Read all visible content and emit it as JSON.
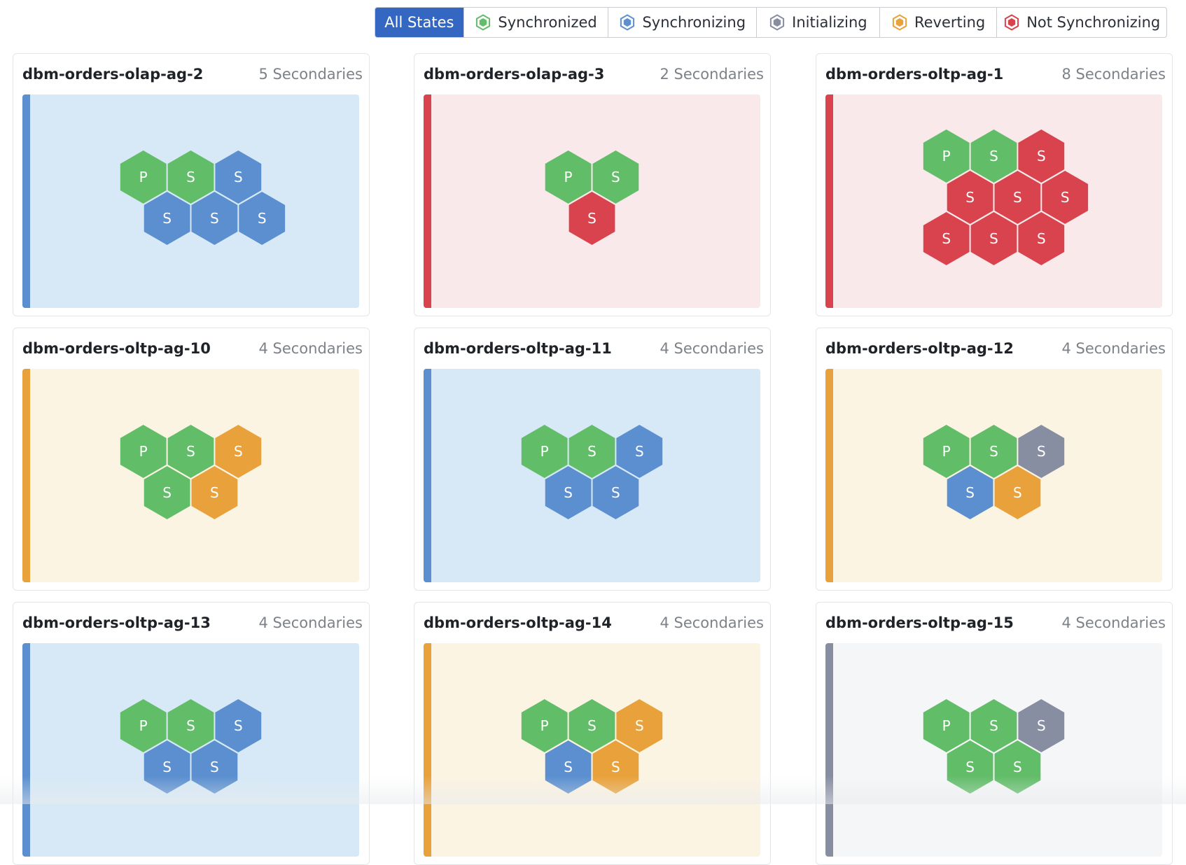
{
  "colors": {
    "synchronized": "#62bd69",
    "synchronizing": "#5b8fcf",
    "initializing": "#878ea1",
    "reverting": "#e9a23b",
    "not_synchronizing": "#d9434e",
    "active_filter_bg": "#3367c2"
  },
  "panel_backgrounds": {
    "synchronizing": "#d7e9f6",
    "not_synchronizing": "#f9e9ea",
    "reverting": "#fcf4e3",
    "initializing": "#f5f6f7"
  },
  "filters": [
    {
      "label": "All States",
      "state": "all",
      "active": true,
      "icon": ""
    },
    {
      "label": "Synchronized",
      "state": "synchronized",
      "active": false,
      "icon": "hexagon-icon"
    },
    {
      "label": "Synchronizing",
      "state": "synchronizing",
      "active": false,
      "icon": "hexagon-icon"
    },
    {
      "label": "Initializing",
      "state": "initializing",
      "active": false,
      "icon": "hexagon-icon"
    },
    {
      "label": "Reverting",
      "state": "reverting",
      "active": false,
      "icon": "hexagon-icon"
    },
    {
      "label": "Not Synchronizing",
      "state": "not_synchronizing",
      "active": false,
      "icon": "hexagon-icon"
    }
  ],
  "groups": [
    {
      "name": "dbm-orders-olap-ag-2",
      "secondaries_label": "5 Secondaries",
      "state": "synchronizing",
      "rows": [
        [
          {
            "label": "P",
            "state": "synchronized"
          },
          {
            "label": "S",
            "state": "synchronized"
          },
          {
            "label": "S",
            "state": "synchronizing"
          }
        ],
        [
          {
            "label": "S",
            "state": "synchronizing"
          },
          {
            "label": "S",
            "state": "synchronizing"
          },
          {
            "label": "S",
            "state": "synchronizing"
          }
        ]
      ]
    },
    {
      "name": "dbm-orders-olap-ag-3",
      "secondaries_label": "2 Secondaries",
      "state": "not_synchronizing",
      "rows": [
        [
          {
            "label": "P",
            "state": "synchronized"
          },
          {
            "label": "S",
            "state": "synchronized"
          }
        ],
        [
          {
            "label": "S",
            "state": "not_synchronizing"
          }
        ]
      ]
    },
    {
      "name": "dbm-orders-oltp-ag-1",
      "secondaries_label": "8 Secondaries",
      "state": "not_synchronizing",
      "rows": [
        [
          {
            "label": "P",
            "state": "synchronized"
          },
          {
            "label": "S",
            "state": "synchronized"
          },
          {
            "label": "S",
            "state": "not_synchronizing"
          }
        ],
        [
          {
            "label": "S",
            "state": "not_synchronizing"
          },
          {
            "label": "S",
            "state": "not_synchronizing"
          },
          {
            "label": "S",
            "state": "not_synchronizing"
          }
        ],
        [
          {
            "label": "S",
            "state": "not_synchronizing"
          },
          {
            "label": "S",
            "state": "not_synchronizing"
          },
          {
            "label": "S",
            "state": "not_synchronizing"
          }
        ]
      ]
    },
    {
      "name": "dbm-orders-oltp-ag-10",
      "secondaries_label": "4 Secondaries",
      "state": "reverting",
      "rows": [
        [
          {
            "label": "P",
            "state": "synchronized"
          },
          {
            "label": "S",
            "state": "synchronized"
          },
          {
            "label": "S",
            "state": "reverting"
          }
        ],
        [
          {
            "label": "S",
            "state": "synchronized"
          },
          {
            "label": "S",
            "state": "reverting"
          }
        ]
      ]
    },
    {
      "name": "dbm-orders-oltp-ag-11",
      "secondaries_label": "4 Secondaries",
      "state": "synchronizing",
      "rows": [
        [
          {
            "label": "P",
            "state": "synchronized"
          },
          {
            "label": "S",
            "state": "synchronized"
          },
          {
            "label": "S",
            "state": "synchronizing"
          }
        ],
        [
          {
            "label": "S",
            "state": "synchronizing"
          },
          {
            "label": "S",
            "state": "synchronizing"
          }
        ]
      ]
    },
    {
      "name": "dbm-orders-oltp-ag-12",
      "secondaries_label": "4 Secondaries",
      "state": "reverting",
      "rows": [
        [
          {
            "label": "P",
            "state": "synchronized"
          },
          {
            "label": "S",
            "state": "synchronized"
          },
          {
            "label": "S",
            "state": "initializing"
          }
        ],
        [
          {
            "label": "S",
            "state": "synchronizing"
          },
          {
            "label": "S",
            "state": "reverting"
          }
        ]
      ]
    },
    {
      "name": "dbm-orders-oltp-ag-13",
      "secondaries_label": "4 Secondaries",
      "state": "synchronizing",
      "rows": [
        [
          {
            "label": "P",
            "state": "synchronized"
          },
          {
            "label": "S",
            "state": "synchronized"
          },
          {
            "label": "S",
            "state": "synchronizing"
          }
        ],
        [
          {
            "label": "S",
            "state": "synchronizing"
          },
          {
            "label": "S",
            "state": "synchronizing"
          }
        ]
      ]
    },
    {
      "name": "dbm-orders-oltp-ag-14",
      "secondaries_label": "4 Secondaries",
      "state": "reverting",
      "rows": [
        [
          {
            "label": "P",
            "state": "synchronized"
          },
          {
            "label": "S",
            "state": "synchronized"
          },
          {
            "label": "S",
            "state": "reverting"
          }
        ],
        [
          {
            "label": "S",
            "state": "synchronizing"
          },
          {
            "label": "S",
            "state": "reverting"
          }
        ]
      ]
    },
    {
      "name": "dbm-orders-oltp-ag-15",
      "secondaries_label": "4 Secondaries",
      "state": "initializing",
      "rows": [
        [
          {
            "label": "P",
            "state": "synchronized"
          },
          {
            "label": "S",
            "state": "synchronized"
          },
          {
            "label": "S",
            "state": "initializing"
          }
        ],
        [
          {
            "label": "S",
            "state": "synchronized"
          },
          {
            "label": "S",
            "state": "synchronized"
          }
        ]
      ]
    }
  ]
}
